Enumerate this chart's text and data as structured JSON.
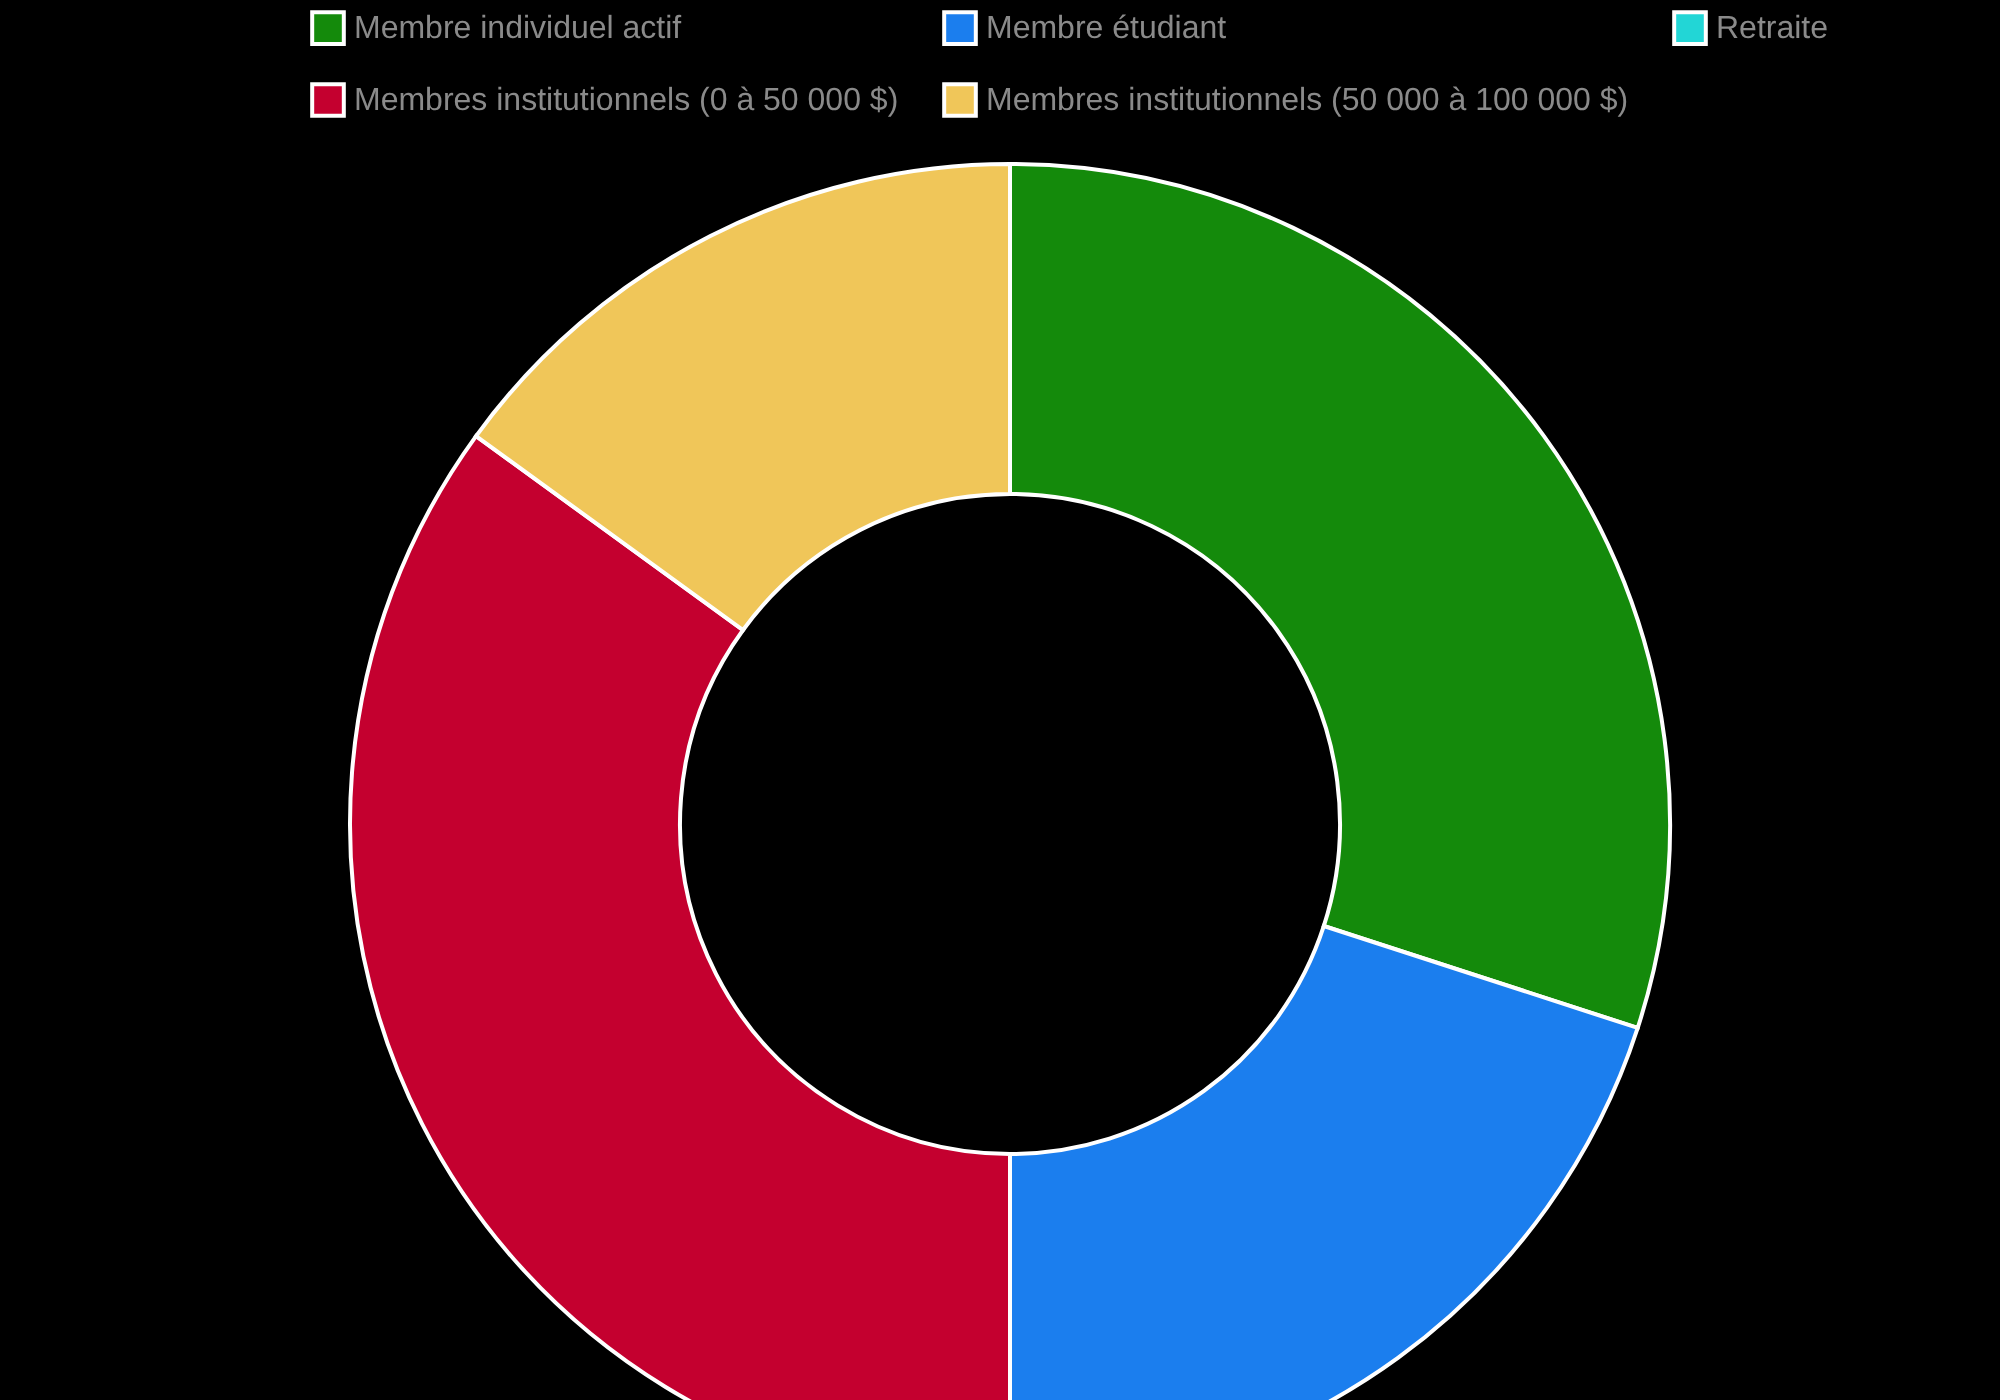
{
  "chart_data": {
    "type": "donut",
    "categories": [
      "Membre individuel actif",
      "Membre étudiant",
      "Retraite",
      "Membres institutionnels (0 à 50 000 $)",
      "Membres institutionnels (50 000 à 100 000 $)"
    ],
    "values": [
      30,
      20,
      null,
      35,
      15
    ],
    "colors": [
      "#148a0b",
      "#1b7eee",
      "#22d6d6",
      "#c4002f",
      "#f0c659"
    ],
    "legend": "top"
  }
}
